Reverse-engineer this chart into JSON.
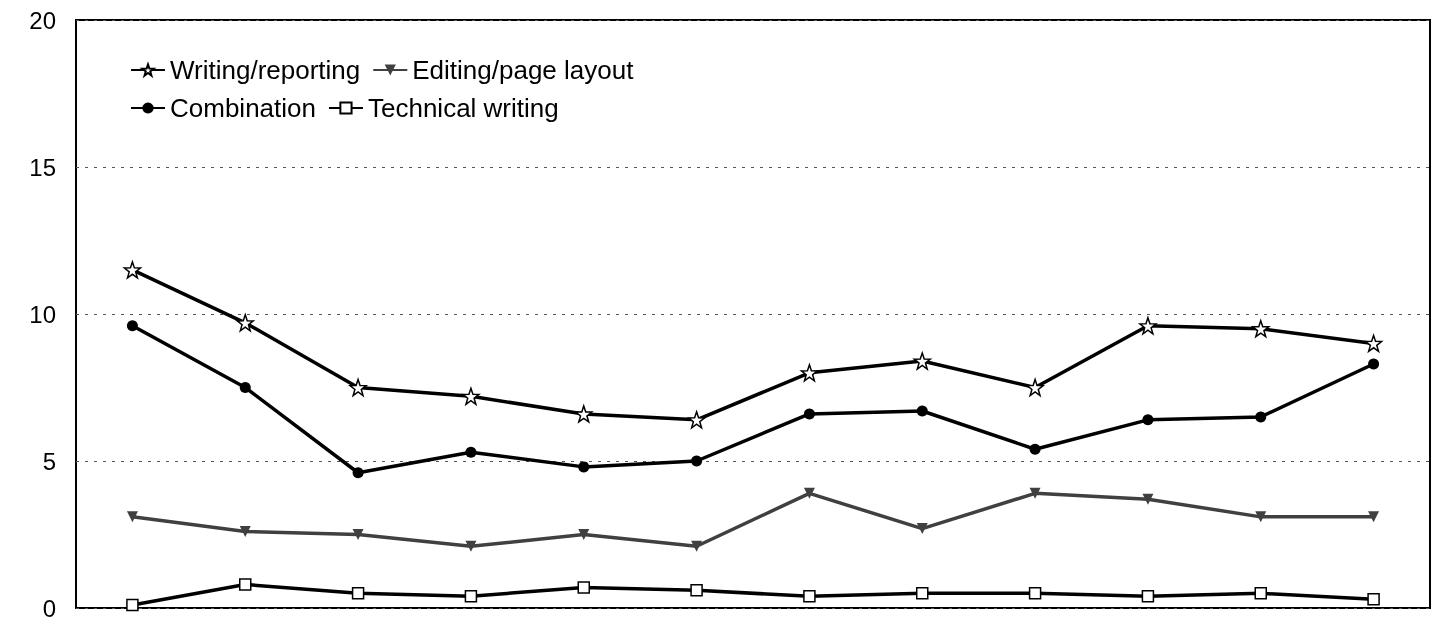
{
  "chart_data": {
    "type": "line",
    "categories": [
      null,
      null,
      null,
      null,
      null,
      null,
      null,
      null,
      null,
      null,
      null,
      null
    ],
    "series": [
      {
        "name": "Writing/reporting",
        "color": "#000000",
        "marker": "star",
        "values": [
          11.5,
          9.7,
          7.5,
          7.2,
          6.6,
          6.4,
          8.0,
          8.4,
          7.5,
          9.6,
          9.5,
          9.0
        ]
      },
      {
        "name": "Editing/page layout",
        "color": "#404040",
        "marker": "triangle",
        "values": [
          3.1,
          2.6,
          2.5,
          2.1,
          2.5,
          2.1,
          3.9,
          2.7,
          3.9,
          3.7,
          3.1,
          3.1
        ]
      },
      {
        "name": "Combination",
        "color": "#000000",
        "marker": "circle",
        "values": [
          9.6,
          7.5,
          4.6,
          5.3,
          4.8,
          5.0,
          6.6,
          6.7,
          5.4,
          6.4,
          6.5,
          8.3
        ]
      },
      {
        "name": "Technical writing",
        "color": "#000000",
        "marker": "square",
        "values": [
          0.1,
          0.8,
          0.5,
          0.4,
          0.7,
          0.6,
          0.4,
          0.5,
          0.5,
          0.4,
          0.5,
          0.3
        ]
      }
    ],
    "ylim": [
      0,
      20
    ],
    "yticks": [
      0,
      5,
      10,
      15,
      20
    ],
    "grid": "y",
    "legend": "top left",
    "tick_labels": "y"
  }
}
